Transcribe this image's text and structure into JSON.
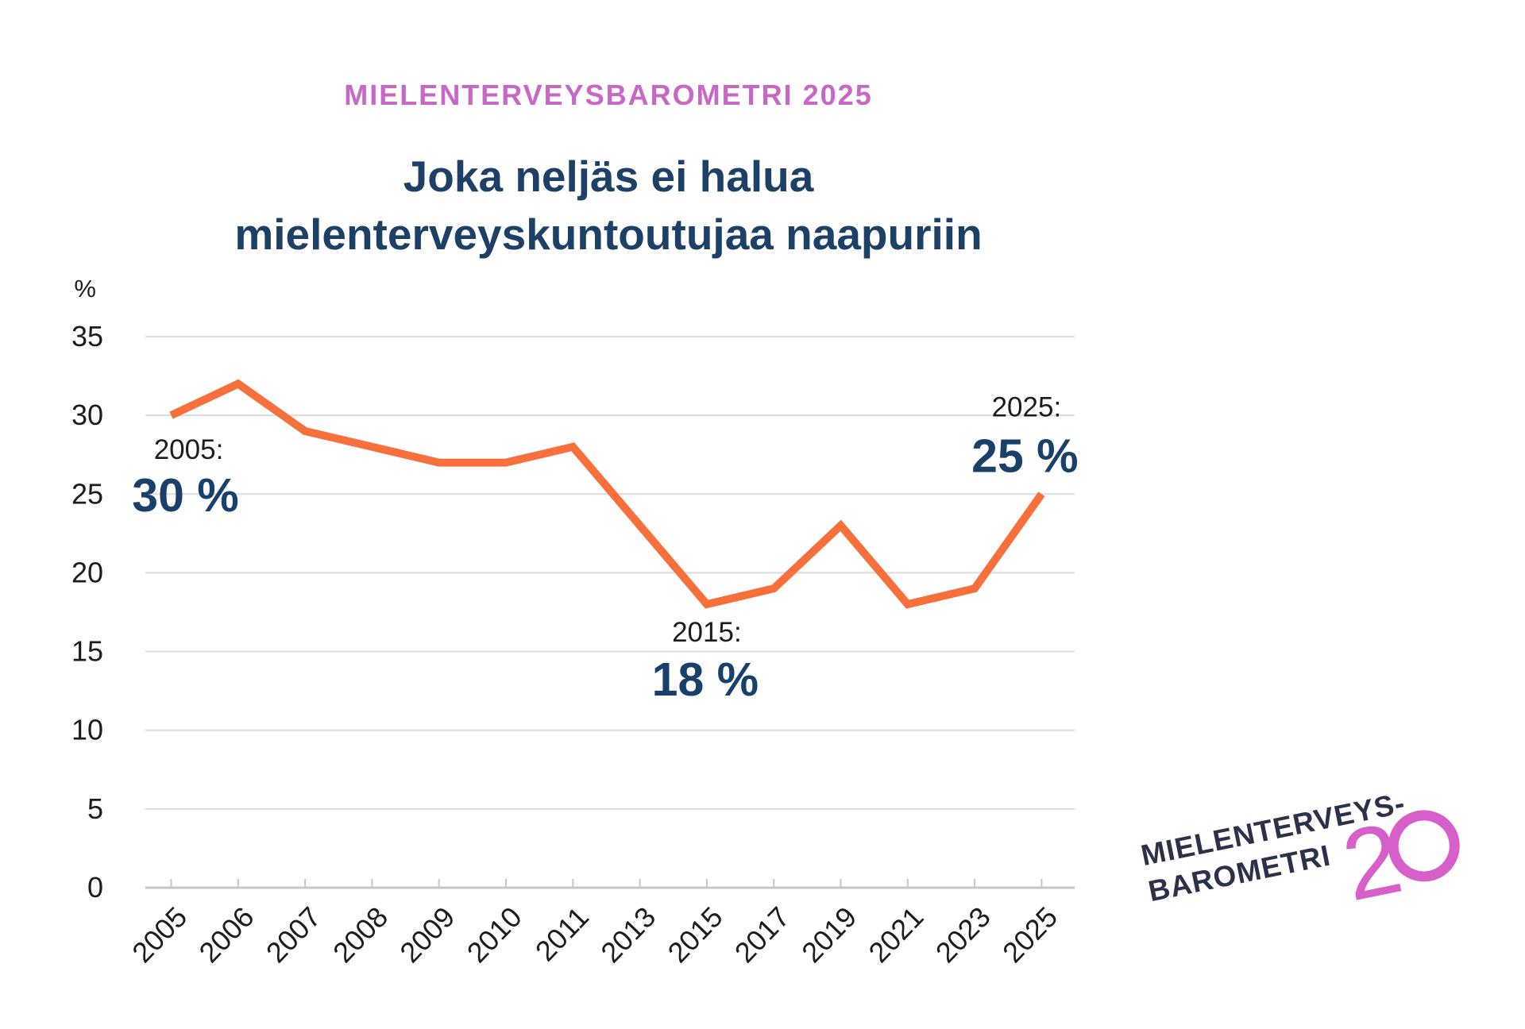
{
  "header": {
    "kicker": "MIELENTERVEYSBAROMETRI 2025",
    "title_line1": "Joka neljäs ei halua",
    "title_line2": "mielenterveyskuntoutujaa naapuriin"
  },
  "colors": {
    "kicker_pink": "#c767c6",
    "title_navy": "#1d4067",
    "value_navy": "#17416b",
    "line_orange": "#f7703c",
    "annotation_black": "#1c1c1c",
    "gridline_gray": "#dcdcdc",
    "axis_gray": "#c6c6c6",
    "logo_navy": "#2c3149",
    "logo_pink": "#d75fca"
  },
  "chart_data": {
    "type": "line",
    "title": "Joka neljäs ei halua mielenterveyskuntoutujaa naapuriin",
    "unit": "%",
    "categories": [
      "2005",
      "2006",
      "2007",
      "2008",
      "2009",
      "2010",
      "2011",
      "2013",
      "2015",
      "2017",
      "2019",
      "2021",
      "2023",
      "2025"
    ],
    "values": [
      30,
      32,
      29,
      28,
      27,
      27,
      28,
      23,
      18,
      19,
      23,
      18,
      19,
      25
    ],
    "ylim": [
      0,
      35
    ],
    "ytick_step": 5,
    "grid": true,
    "legend": false,
    "annotations": [
      {
        "category": "2005",
        "year_label": "2005:",
        "value_label": "30 %",
        "placement": "below"
      },
      {
        "category": "2015",
        "year_label": "2015:",
        "value_label": "18 %",
        "placement": "below"
      },
      {
        "category": "2025",
        "year_label": "2025:",
        "value_label": "25 %",
        "placement": "above"
      }
    ]
  },
  "logo": {
    "line1": "MIELENTERVEYS-",
    "line2": "BAROMETRI",
    "number": "20"
  }
}
